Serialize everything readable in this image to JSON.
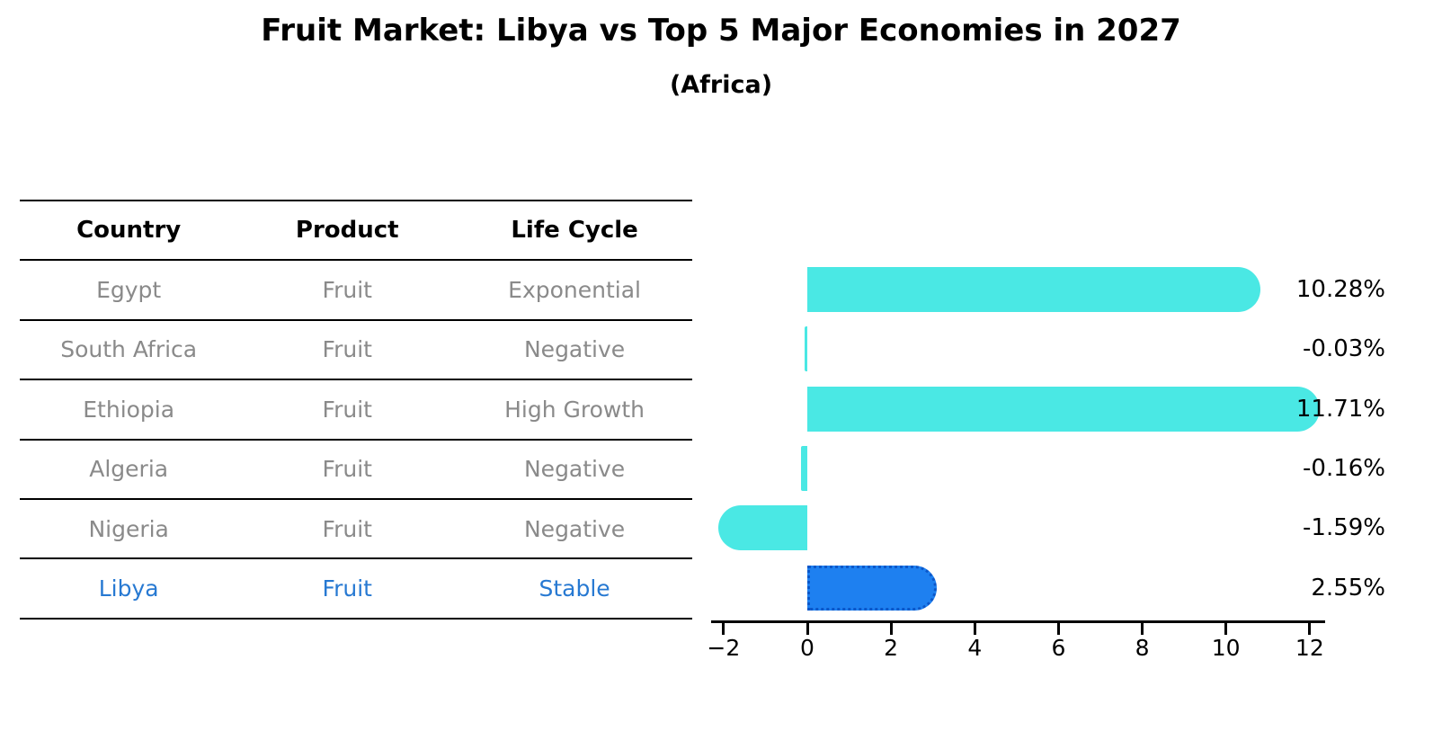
{
  "title": "Fruit Market: Libya vs Top 5 Major Economies in 2027",
  "subtitle": "(Africa)",
  "table": {
    "headers": [
      "Country",
      "Product",
      "Life Cycle"
    ],
    "rows": [
      {
        "country": "Egypt",
        "product": "Fruit",
        "life_cycle": "Exponential",
        "highlight": false
      },
      {
        "country": "South Africa",
        "product": "Fruit",
        "life_cycle": "Negative",
        "highlight": false
      },
      {
        "country": "Ethiopia",
        "product": "Fruit",
        "life_cycle": "High Growth",
        "highlight": false
      },
      {
        "country": "Algeria",
        "product": "Fruit",
        "life_cycle": "Negative",
        "highlight": false
      },
      {
        "country": "Nigeria",
        "product": "Fruit",
        "life_cycle": "Negative",
        "highlight": false
      },
      {
        "country": "Libya",
        "product": "Fruit",
        "life_cycle": "Stable",
        "highlight": true
      }
    ]
  },
  "chart_data": {
    "type": "bar",
    "orientation": "horizontal",
    "categories": [
      "Egypt",
      "South Africa",
      "Ethiopia",
      "Algeria",
      "Nigeria",
      "Libya"
    ],
    "values": [
      10.28,
      -0.03,
      11.71,
      -0.16,
      -1.59,
      2.55
    ],
    "value_labels": [
      "10.28%",
      "-0.03%",
      "11.71%",
      "-0.16%",
      "-1.59%",
      "2.55%"
    ],
    "x_ticks": [
      -2,
      0,
      2,
      4,
      6,
      8,
      10,
      12
    ],
    "xlim": [
      -2.3,
      12.37
    ],
    "grid": false,
    "legend": null,
    "highlight_index": 5,
    "bar_color": "#4AE8E4",
    "highlight_bar_color": "#1E80F0",
    "highlight_border_color": "#0B57C9"
  },
  "colors": {
    "text_primary": "#000000",
    "table_row_text": "#8a8a8a",
    "highlight_text": "#2779d2",
    "axis_color": "#000000"
  }
}
